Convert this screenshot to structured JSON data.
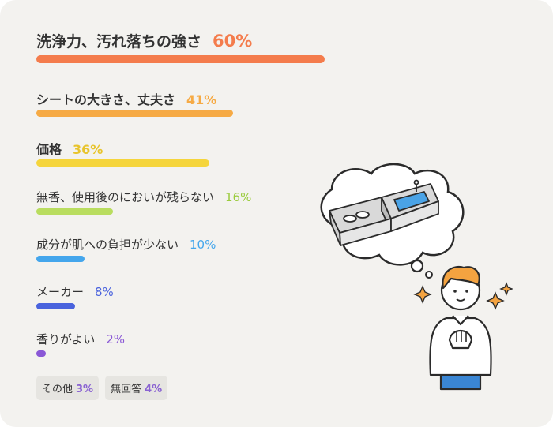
{
  "chart_data": {
    "type": "bar",
    "orientation": "horizontal",
    "categories": [
      "洗浄力、汚れ落ちの強さ",
      "シートの大きさ、丈夫さ",
      "価格",
      "無香、使用後のにおいが残らない",
      "成分が肌への負担が少ない",
      "メーカー",
      "香りがよい"
    ],
    "values": [
      60,
      41,
      36,
      16,
      10,
      8,
      2
    ],
    "value_labels": [
      "60%",
      "41%",
      "36%",
      "16%",
      "10%",
      "8%",
      "2%"
    ],
    "colors": [
      "#f47c4c",
      "#f6aa44",
      "#f5d53c",
      "#b9dd5f",
      "#44a6ec",
      "#4a63dd",
      "#8a58d6"
    ],
    "unit": "%",
    "others": [
      {
        "label": "その他",
        "value_label": "3%",
        "value": 3
      },
      {
        "label": "無回答",
        "value_label": "4%",
        "value": 4
      }
    ]
  },
  "illustration": {
    "figure": "person-thinking",
    "thought_bubble": "kitchen-sink-counter",
    "accent_color": "#f4a340",
    "shirt_color": "#ffffff",
    "pants_color": "#3a86d4"
  }
}
